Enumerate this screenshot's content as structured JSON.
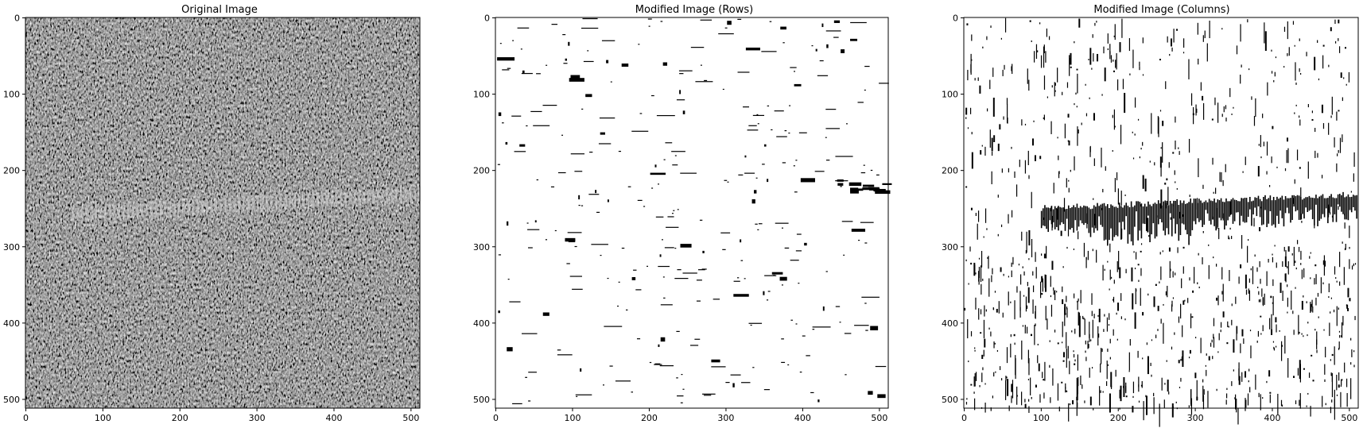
{
  "figure": {
    "panels": [
      {
        "id": "original",
        "title": "Original Image",
        "xticks": [
          "0",
          "100",
          "200",
          "300",
          "400",
          "500"
        ],
        "yticks": [
          "0",
          "100",
          "200",
          "300",
          "400",
          "500"
        ],
        "style": "grayscale-texture"
      },
      {
        "id": "rows",
        "title": "Modified Image (Rows)",
        "xticks": [
          "0",
          "100",
          "200",
          "300",
          "400",
          "500"
        ],
        "yticks": [
          "0",
          "100",
          "200",
          "300",
          "400",
          "500"
        ],
        "style": "binary-horizontal-marks"
      },
      {
        "id": "columns",
        "title": "Modified Image (Columns)",
        "xticks": [
          "0",
          "100",
          "200",
          "300",
          "400",
          "500"
        ],
        "yticks": [
          "0",
          "100",
          "200",
          "300",
          "400",
          "500"
        ],
        "style": "binary-vertical-marks"
      }
    ],
    "image_size": [
      512,
      512
    ],
    "tick_values": [
      0,
      100,
      200,
      300,
      400,
      500
    ],
    "defect_band_rows": [
      225,
      270
    ],
    "colors": {
      "background": "#ffffff",
      "ink": "#000000",
      "texture_dark": "#3a3a3a",
      "texture_light": "#bdbdbd"
    }
  }
}
